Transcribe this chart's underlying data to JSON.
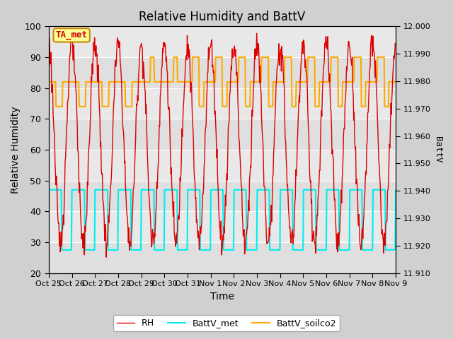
{
  "title": "Relative Humidity and BattV",
  "ylabel_left": "Relative Humidity",
  "ylabel_right": "BattV",
  "xlabel": "Time",
  "ylim_left": [
    20,
    100
  ],
  "ylim_right": [
    11.91,
    12.0
  ],
  "annotation_text": "TA_met",
  "annotation_color": "#cc0000",
  "annotation_bg": "#ffff99",
  "annotation_border": "#cc8800",
  "x_tick_labels": [
    "Oct 25",
    "Oct 26",
    "Oct 27",
    "Oct 28",
    "Oct 29",
    "Oct 30",
    "Oct 31",
    "Nov 1",
    "Nov 2",
    "Nov 3",
    "Nov 4",
    "Nov 5",
    "Nov 6",
    "Nov 7",
    "Nov 8",
    "Nov 9"
  ],
  "rh_color": "#dd0000",
  "battv_met_color": "#00eeee",
  "battv_soilco2_color": "#ffaa00",
  "grid_color": "#ffffff",
  "bg_outer": "#d0d0d0",
  "bg_plot": "#e8e8e8",
  "yticks_left": [
    20,
    30,
    40,
    50,
    60,
    70,
    80,
    90,
    100
  ],
  "yticks_right": [
    11.91,
    11.92,
    11.93,
    11.94,
    11.95,
    11.96,
    11.97,
    11.98,
    11.99,
    12.0
  ],
  "n_days": 15
}
